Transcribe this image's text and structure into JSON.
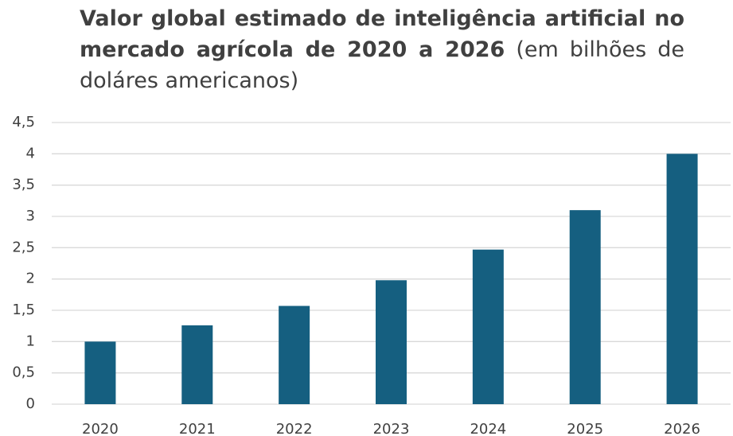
{
  "chart_data": {
    "type": "bar",
    "title": "Valor global estimado de inteligência artificial no mercado agrícola de 2020 a 2026",
    "subtitle": "(em bilhões de doláres americanos)",
    "categories": [
      "2020",
      "2021",
      "2022",
      "2023",
      "2024",
      "2025",
      "2026"
    ],
    "values": [
      1.0,
      1.26,
      1.57,
      1.98,
      2.47,
      3.1,
      4.0
    ],
    "color": "#155f80",
    "ylim": [
      0,
      4.5
    ],
    "yticks": [
      0,
      {
        "value": 0.5,
        "label": "0,5"
      },
      1,
      {
        "value": 1.5,
        "label": "1,5"
      },
      2,
      {
        "value": 2.5,
        "label": "2,5"
      },
      3,
      {
        "value": 3.5,
        "label": "3,5"
      },
      4,
      {
        "value": 4.5,
        "label": "4,5"
      }
    ],
    "grid": true
  }
}
